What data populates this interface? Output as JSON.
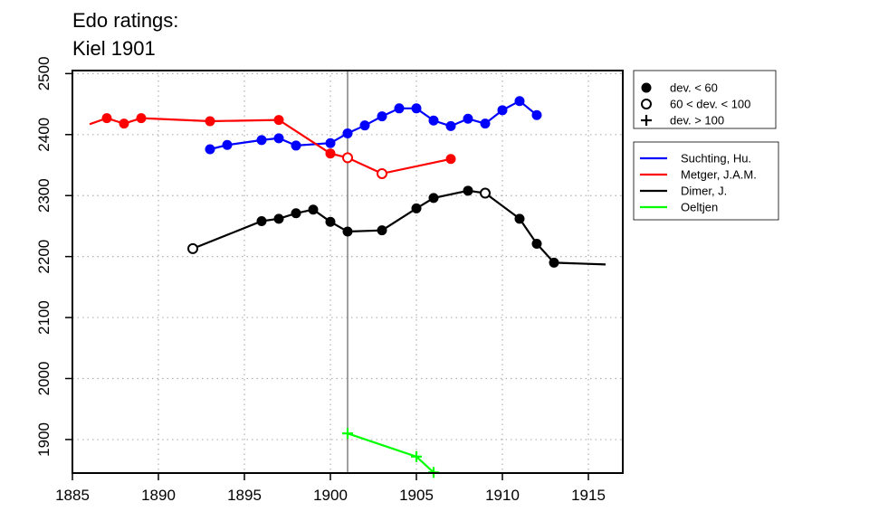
{
  "chart_data": {
    "type": "line",
    "title": "Edo ratings:",
    "subtitle": "Kiel 1901",
    "xlabel": "",
    "ylabel": "",
    "xlim": [
      1885,
      1917
    ],
    "ylim": [
      1845,
      2505
    ],
    "x_ticks": [
      1885,
      1890,
      1895,
      1900,
      1905,
      1910,
      1915
    ],
    "y_ticks": [
      1900,
      2000,
      2100,
      2200,
      2300,
      2400,
      2500
    ],
    "grid": true,
    "reference_line_x": 1901,
    "symbol_legend": [
      {
        "symbol": "filled-circle",
        "label": "dev. < 60"
      },
      {
        "symbol": "open-circle",
        "label": "60 < dev. < 100"
      },
      {
        "symbol": "plus",
        "label": "dev. > 100"
      }
    ],
    "series": [
      {
        "name": "Suchting, Hu.",
        "color": "#0000ff",
        "points": [
          {
            "x": 1893,
            "y": 2376,
            "m": "filled"
          },
          {
            "x": 1894,
            "y": 2383,
            "m": "filled"
          },
          {
            "x": 1896,
            "y": 2391,
            "m": "filled"
          },
          {
            "x": 1897,
            "y": 2394,
            "m": "filled"
          },
          {
            "x": 1898,
            "y": 2382,
            "m": "filled"
          },
          {
            "x": 1900,
            "y": 2386,
            "m": "filled"
          },
          {
            "x": 1901,
            "y": 2402,
            "m": "filled"
          },
          {
            "x": 1902,
            "y": 2415,
            "m": "filled"
          },
          {
            "x": 1903,
            "y": 2430,
            "m": "filled"
          },
          {
            "x": 1904,
            "y": 2443,
            "m": "filled"
          },
          {
            "x": 1905,
            "y": 2443,
            "m": "filled"
          },
          {
            "x": 1906,
            "y": 2423,
            "m": "filled"
          },
          {
            "x": 1907,
            "y": 2414,
            "m": "filled"
          },
          {
            "x": 1908,
            "y": 2426,
            "m": "filled"
          },
          {
            "x": 1909,
            "y": 2418,
            "m": "filled"
          },
          {
            "x": 1910,
            "y": 2440,
            "m": "filled"
          },
          {
            "x": 1911,
            "y": 2455,
            "m": "filled"
          },
          {
            "x": 1912,
            "y": 2432,
            "m": "filled"
          }
        ]
      },
      {
        "name": "Metger, J.A.M.",
        "color": "#ff0000",
        "points": [
          {
            "x": 1886,
            "y": 2417,
            "m": "none"
          },
          {
            "x": 1887,
            "y": 2427,
            "m": "filled"
          },
          {
            "x": 1888,
            "y": 2418,
            "m": "filled"
          },
          {
            "x": 1889,
            "y": 2427,
            "m": "filled"
          },
          {
            "x": 1893,
            "y": 2422,
            "m": "filled"
          },
          {
            "x": 1897,
            "y": 2424,
            "m": "filled"
          },
          {
            "x": 1900,
            "y": 2369,
            "m": "filled"
          },
          {
            "x": 1901,
            "y": 2362,
            "m": "open"
          },
          {
            "x": 1903,
            "y": 2336,
            "m": "open"
          },
          {
            "x": 1907,
            "y": 2360,
            "m": "filled"
          }
        ]
      },
      {
        "name": "Dimer, J.",
        "color": "#000000",
        "points": [
          {
            "x": 1892,
            "y": 2213,
            "m": "open"
          },
          {
            "x": 1896,
            "y": 2258,
            "m": "filled"
          },
          {
            "x": 1897,
            "y": 2262,
            "m": "filled"
          },
          {
            "x": 1898,
            "y": 2271,
            "m": "filled"
          },
          {
            "x": 1899,
            "y": 2277,
            "m": "filled"
          },
          {
            "x": 1900,
            "y": 2257,
            "m": "filled"
          },
          {
            "x": 1901,
            "y": 2241,
            "m": "filled"
          },
          {
            "x": 1903,
            "y": 2243,
            "m": "filled"
          },
          {
            "x": 1905,
            "y": 2279,
            "m": "filled"
          },
          {
            "x": 1906,
            "y": 2296,
            "m": "filled"
          },
          {
            "x": 1908,
            "y": 2308,
            "m": "filled"
          },
          {
            "x": 1909,
            "y": 2304,
            "m": "open"
          },
          {
            "x": 1911,
            "y": 2262,
            "m": "filled"
          },
          {
            "x": 1912,
            "y": 2221,
            "m": "filled"
          },
          {
            "x": 1913,
            "y": 2190,
            "m": "filled"
          },
          {
            "x": 1916,
            "y": 2187,
            "m": "none"
          }
        ]
      },
      {
        "name": "Oeltjen",
        "color": "#00ff00",
        "points": [
          {
            "x": 1901,
            "y": 1910,
            "m": "plus"
          },
          {
            "x": 1905,
            "y": 1872,
            "m": "plus"
          },
          {
            "x": 1906,
            "y": 1846,
            "m": "plus"
          }
        ]
      }
    ]
  }
}
